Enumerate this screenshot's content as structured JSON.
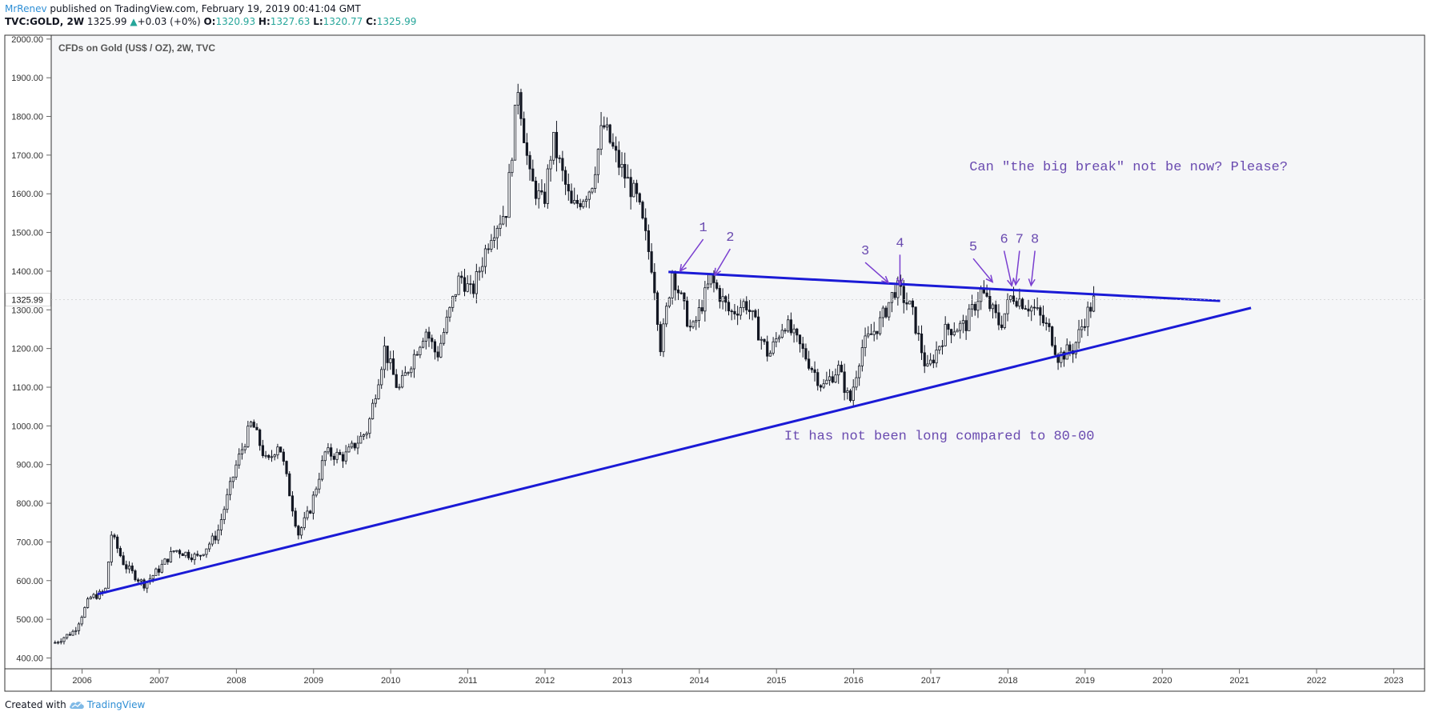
{
  "header": {
    "author": "MrRenev",
    "published": " published on TradingView.com, February 19, 2019 00:41:04 GMT",
    "symbol": "TVC:GOLD, 2W",
    "last": "1325.99",
    "up_arrow": "▲",
    "change": "+0.03 (+0%)",
    "o_label": "O:",
    "o_value": "1320.93",
    "h_label": "H:",
    "h_value": "1327.63",
    "l_label": "L:",
    "l_value": "1320.77",
    "c_label": "C:",
    "c_value": "1325.99"
  },
  "footer": {
    "created_with": "Created with",
    "brand": "TradingView"
  },
  "colors": {
    "plot_bg": "#f5f6f8",
    "trendline": "#1a1ad6",
    "annotation": "#7a3fd0",
    "annotation_text": "#6a4bb0",
    "candle": "#131722",
    "price_badge": "#ffffff"
  },
  "icons": {
    "footer_logo": "tradingview-cloud-icon",
    "change_arrow": "triangle-up-icon"
  },
  "chart_data": {
    "type": "candlestick",
    "title": "CFDs on Gold (US$ / OZ), 2W, TVC",
    "xlabel": "",
    "ylabel": "",
    "ylim": [
      372,
      2010
    ],
    "x_range": [
      2005.6,
      2023.4
    ],
    "y_ticks": [
      "2000.00",
      "1900.00",
      "1800.00",
      "1700.00",
      "1600.00",
      "1500.00",
      "1400.00",
      "1300.00",
      "1200.00",
      "1100.00",
      "1000.00",
      "900.00",
      "800.00",
      "700.00",
      "600.00",
      "500.00",
      "400.00"
    ],
    "x_ticks": [
      "2006",
      "2007",
      "2008",
      "2009",
      "2010",
      "2011",
      "2012",
      "2013",
      "2014",
      "2015",
      "2016",
      "2017",
      "2018",
      "2019",
      "2020",
      "2021",
      "2022",
      "2023"
    ],
    "last_price_label": "1325.99",
    "last_price": 1325.99,
    "grid": false,
    "legend": "none",
    "series_points": [
      {
        "x": 2005.65,
        "y": 440
      },
      {
        "x": 2005.9,
        "y": 470
      },
      {
        "x": 2006.1,
        "y": 555
      },
      {
        "x": 2006.3,
        "y": 570
      },
      {
        "x": 2006.38,
        "y": 720
      },
      {
        "x": 2006.55,
        "y": 640
      },
      {
        "x": 2006.8,
        "y": 590
      },
      {
        "x": 2007.0,
        "y": 630
      },
      {
        "x": 2007.2,
        "y": 680
      },
      {
        "x": 2007.5,
        "y": 660
      },
      {
        "x": 2007.75,
        "y": 720
      },
      {
        "x": 2008.0,
        "y": 900
      },
      {
        "x": 2008.2,
        "y": 1010
      },
      {
        "x": 2008.4,
        "y": 900
      },
      {
        "x": 2008.55,
        "y": 960
      },
      {
        "x": 2008.8,
        "y": 720
      },
      {
        "x": 2008.95,
        "y": 780
      },
      {
        "x": 2009.15,
        "y": 930
      },
      {
        "x": 2009.4,
        "y": 920
      },
      {
        "x": 2009.7,
        "y": 990
      },
      {
        "x": 2009.92,
        "y": 1200
      },
      {
        "x": 2010.1,
        "y": 1090
      },
      {
        "x": 2010.45,
        "y": 1250
      },
      {
        "x": 2010.6,
        "y": 1180
      },
      {
        "x": 2010.9,
        "y": 1390
      },
      {
        "x": 2011.05,
        "y": 1340
      },
      {
        "x": 2011.3,
        "y": 1500
      },
      {
        "x": 2011.5,
        "y": 1560
      },
      {
        "x": 2011.65,
        "y": 1880
      },
      {
        "x": 2011.8,
        "y": 1640
      },
      {
        "x": 2011.98,
        "y": 1570
      },
      {
        "x": 2012.1,
        "y": 1740
      },
      {
        "x": 2012.35,
        "y": 1560
      },
      {
        "x": 2012.6,
        "y": 1620
      },
      {
        "x": 2012.75,
        "y": 1780
      },
      {
        "x": 2012.95,
        "y": 1680
      },
      {
        "x": 2013.2,
        "y": 1580
      },
      {
        "x": 2013.4,
        "y": 1400
      },
      {
        "x": 2013.5,
        "y": 1200
      },
      {
        "x": 2013.65,
        "y": 1400
      },
      {
        "x": 2013.9,
        "y": 1240
      },
      {
        "x": 2014.15,
        "y": 1380
      },
      {
        "x": 2014.4,
        "y": 1290
      },
      {
        "x": 2014.6,
        "y": 1320
      },
      {
        "x": 2014.9,
        "y": 1180
      },
      {
        "x": 2015.1,
        "y": 1270
      },
      {
        "x": 2015.35,
        "y": 1190
      },
      {
        "x": 2015.6,
        "y": 1100
      },
      {
        "x": 2015.8,
        "y": 1150
      },
      {
        "x": 2015.95,
        "y": 1060
      },
      {
        "x": 2016.1,
        "y": 1200
      },
      {
        "x": 2016.35,
        "y": 1270
      },
      {
        "x": 2016.55,
        "y": 1360
      },
      {
        "x": 2016.75,
        "y": 1300
      },
      {
        "x": 2016.95,
        "y": 1140
      },
      {
        "x": 2017.2,
        "y": 1250
      },
      {
        "x": 2017.45,
        "y": 1260
      },
      {
        "x": 2017.65,
        "y": 1350
      },
      {
        "x": 2017.9,
        "y": 1260
      },
      {
        "x": 2018.05,
        "y": 1340
      },
      {
        "x": 2018.2,
        "y": 1320
      },
      {
        "x": 2018.35,
        "y": 1300
      },
      {
        "x": 2018.55,
        "y": 1240
      },
      {
        "x": 2018.65,
        "y": 1180
      },
      {
        "x": 2018.85,
        "y": 1200
      },
      {
        "x": 2019.0,
        "y": 1280
      },
      {
        "x": 2019.12,
        "y": 1326
      }
    ],
    "trendlines": [
      {
        "x1": 2006.2,
        "y1": 565,
        "x2": 2021.15,
        "y2": 1305
      },
      {
        "x1": 2013.6,
        "y1": 1398,
        "x2": 2020.75,
        "y2": 1323
      }
    ],
    "annotations": [
      {
        "text": "Can \"the big break\" not be now? Please?",
        "x": 2017.5,
        "y": 1660
      },
      {
        "text": "It has not been long compared to 80-00",
        "x": 2015.1,
        "y": 965
      }
    ],
    "arrows": [
      {
        "label": "1",
        "lx": 2014.05,
        "ly": 1495,
        "tx": 2013.75,
        "ty": 1400
      },
      {
        "label": "2",
        "lx": 2014.4,
        "ly": 1470,
        "tx": 2014.2,
        "ty": 1390
      },
      {
        "label": "3",
        "lx": 2016.15,
        "ly": 1435,
        "tx": 2016.45,
        "ty": 1370
      },
      {
        "label": "4",
        "lx": 2016.6,
        "ly": 1455,
        "tx": 2016.6,
        "ty": 1365
      },
      {
        "label": "5",
        "lx": 2017.55,
        "ly": 1445,
        "tx": 2017.8,
        "ty": 1372
      },
      {
        "label": "6",
        "lx": 2017.95,
        "ly": 1465,
        "tx": 2018.05,
        "ty": 1362
      },
      {
        "label": "7",
        "lx": 2018.15,
        "ly": 1465,
        "tx": 2018.1,
        "ty": 1365
      },
      {
        "label": "8",
        "lx": 2018.35,
        "ly": 1465,
        "tx": 2018.3,
        "ty": 1363
      }
    ]
  }
}
